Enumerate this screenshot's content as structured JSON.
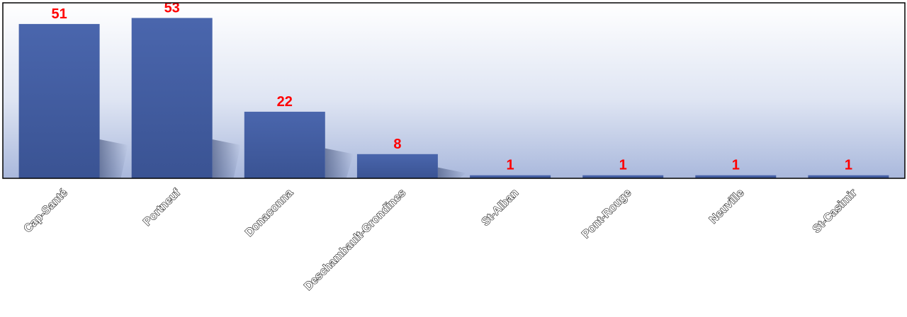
{
  "chart_data": {
    "type": "bar",
    "categories": [
      "Cap-Santé",
      "Portneuf",
      "Donaconna",
      "Deschambault-Grondines",
      "St-Alban",
      "Pont-Rouge",
      "Neuville",
      "St-Casimir"
    ],
    "values": [
      51,
      53,
      22,
      8,
      1,
      1,
      1,
      1
    ],
    "data_labels": [
      "51",
      "53",
      "22",
      "8",
      "1",
      "1",
      "1",
      "1"
    ],
    "title": "",
    "xlabel": "",
    "ylabel": "",
    "ylim": [
      0,
      58
    ],
    "grid": false,
    "legend": "none",
    "colors": {
      "bar": "#4a66ad",
      "bar_dark": "#3a5393",
      "data_label": "#ff0000",
      "plot_bg_top": "#ffffff",
      "plot_bg_bottom": "#a9b8dc",
      "plot_border": "#000000",
      "axis_label": "#000000"
    }
  }
}
